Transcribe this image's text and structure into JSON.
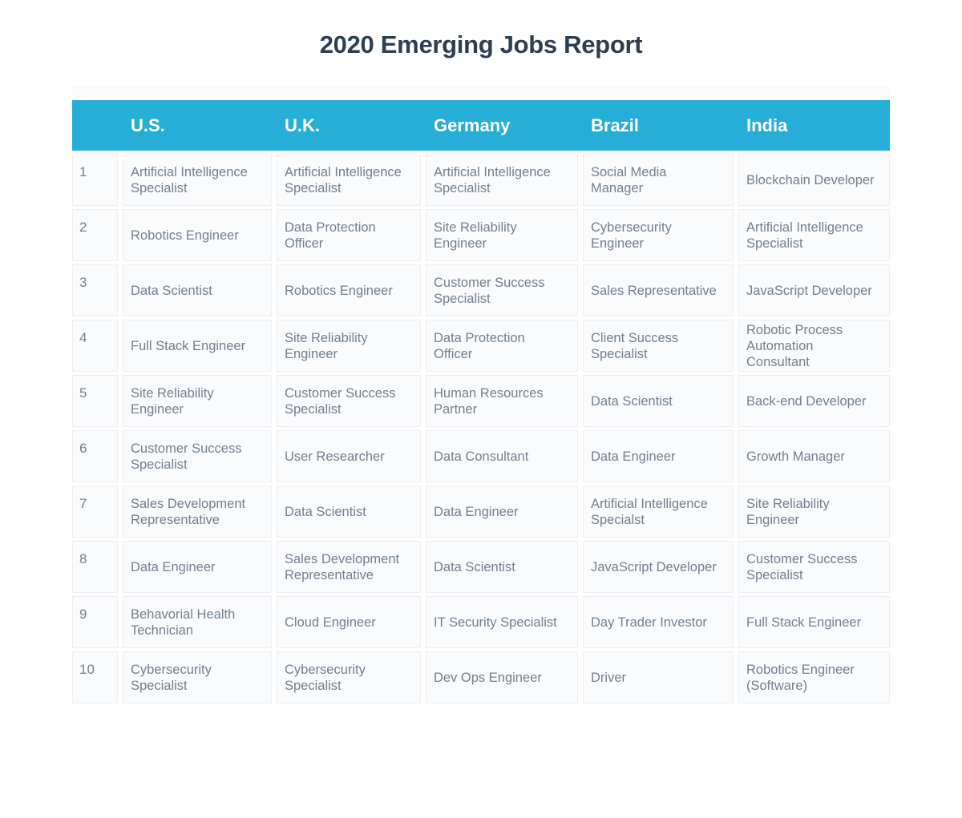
{
  "page_title": "2020 Emerging Jobs Report",
  "colors": {
    "accent_header": "#26AED9",
    "title_text": "#2D3E50",
    "cell_text": "#72808F",
    "cell_background": "#FAFBFC",
    "cell_border": "#ECEEF1"
  },
  "chart_data": {
    "type": "table",
    "title": "2020 Emerging Jobs Report",
    "columns": [
      "U.S.",
      "U.K.",
      "Germany",
      "Brazil",
      "India"
    ],
    "rank_header": "",
    "rows": [
      {
        "rank": "1",
        "cells": [
          "Artificial Intelligence Specialist",
          "Artificial Intelligence Specialist",
          "Artificial Intelligence Specialist",
          "Social Media Manager",
          "Blockchain Developer"
        ]
      },
      {
        "rank": "2",
        "cells": [
          "Robotics Engineer",
          "Data Protection Officer",
          "Site Reliability Engineer",
          "Cybersecurity Engineer",
          "Artificial Intelligence Specialist"
        ]
      },
      {
        "rank": "3",
        "cells": [
          "Data Scientist",
          "Robotics Engineer",
          "Customer Success Specialist",
          "Sales Representative",
          "JavaScript Developer"
        ]
      },
      {
        "rank": "4",
        "cells": [
          "Full Stack Engineer",
          "Site Reliability Engineer",
          "Data Protection Officer",
          "Client Success Specialist",
          "Robotic Process Automation Consultant"
        ]
      },
      {
        "rank": "5",
        "cells": [
          "Site Reliability Engineer",
          "Customer Success Specialist",
          "Human Resources Partner",
          "Data Scientist",
          "Back-end Developer"
        ]
      },
      {
        "rank": "6",
        "cells": [
          "Customer Success Specialist",
          "User Researcher",
          "Data Consultant",
          "Data Engineer",
          "Growth Manager"
        ]
      },
      {
        "rank": "7",
        "cells": [
          "Sales Development Representative",
          "Data Scientist",
          "Data Engineer",
          "Artificial Intelligence Specialst",
          "Site Reliability Engineer"
        ]
      },
      {
        "rank": "8",
        "cells": [
          "Data Engineer",
          "Sales Development Representative",
          "Data Scientist",
          "JavaScript Developer",
          "Customer Success Specialist"
        ]
      },
      {
        "rank": "9",
        "cells": [
          "Behavorial Health Technician",
          "Cloud Engineer",
          "IT Security Specialist",
          "Day Trader Investor",
          "Full Stack Engineer"
        ]
      },
      {
        "rank": "10",
        "cells": [
          "Cybersecurity Specialist",
          "Cybersecurity Specialist",
          "Dev Ops Engineer",
          "Driver",
          "Robotics Engineer (Software)"
        ]
      }
    ]
  }
}
